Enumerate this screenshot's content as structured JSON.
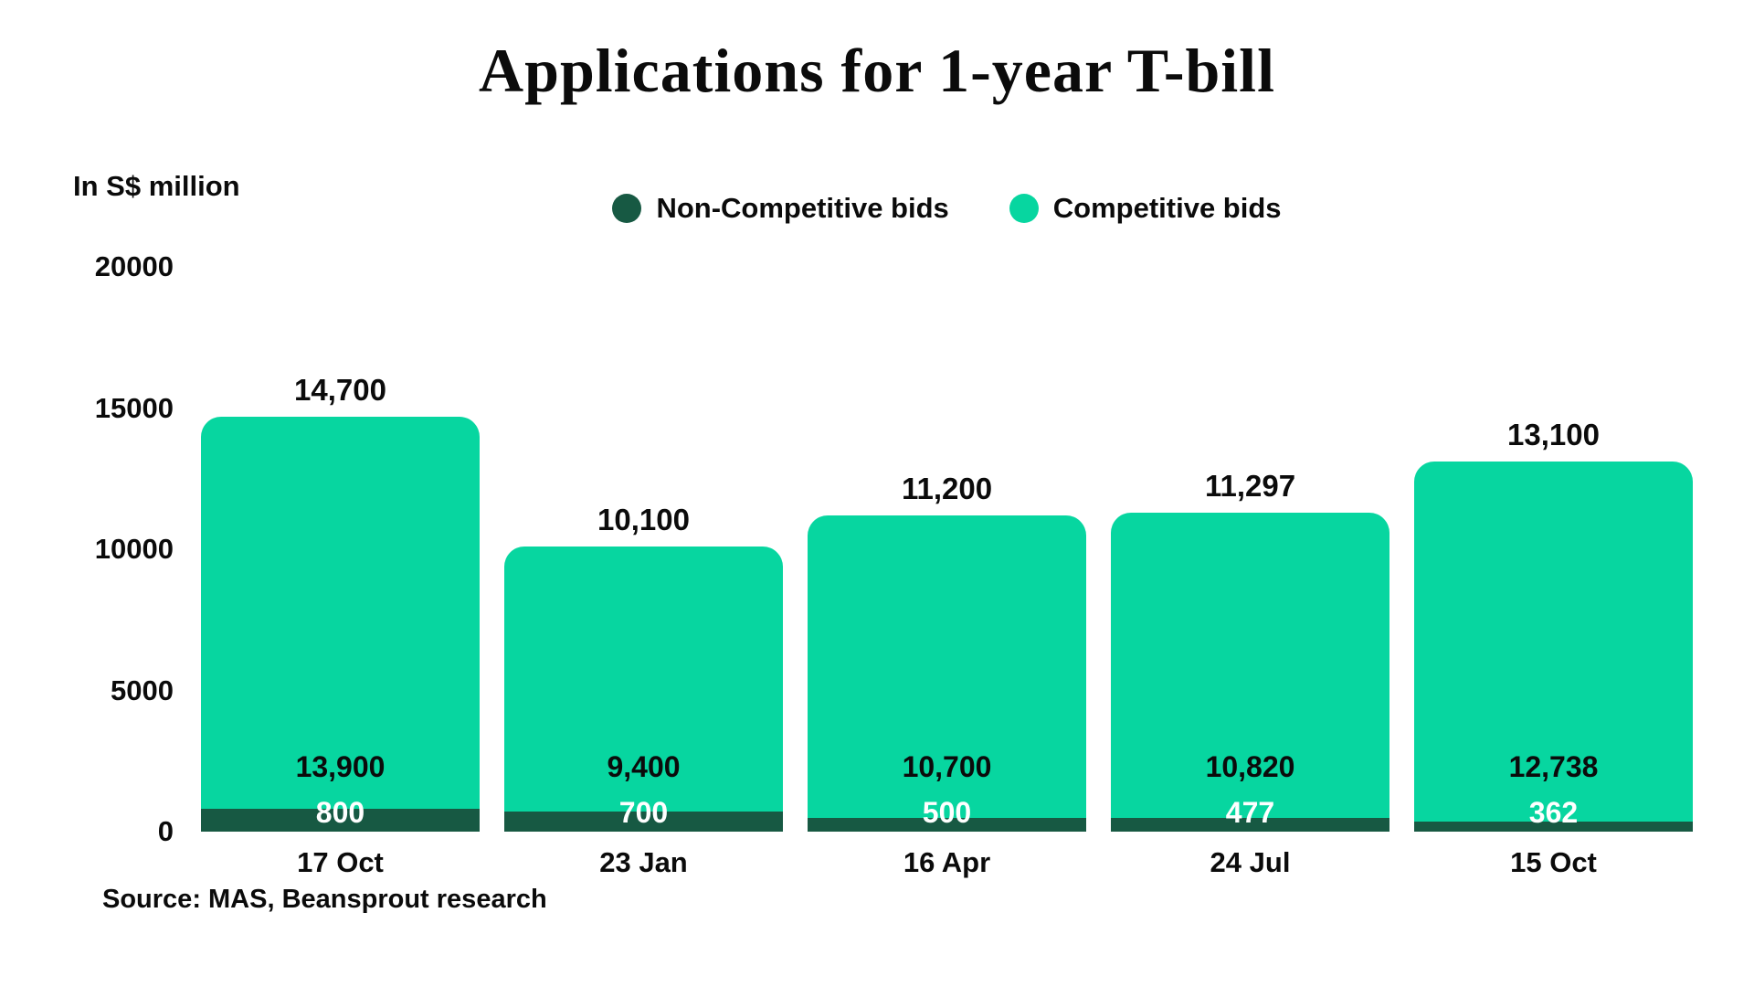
{
  "page": {
    "background": "#ffffff",
    "text_color": "#0b0b0b"
  },
  "chart": {
    "title": "Applications for 1-year T-bill",
    "unit_label": "In S$ million",
    "source": "Source: MAS, Beansprout research",
    "legend_items": [
      {
        "label": "Non-Competitive bids",
        "color": "#175943"
      },
      {
        "label": "Competitive bids",
        "color": "#07d6a0"
      }
    ]
  },
  "chart_data": {
    "type": "bar",
    "stacked": true,
    "title": "Applications for 1-year T-bill",
    "unit": "S$ million",
    "categories": [
      "17 Oct",
      "23 Jan",
      "16 Apr",
      "24 Jul",
      "15 Oct"
    ],
    "series": [
      {
        "name": "Non-Competitive bids",
        "color": "#175943",
        "label_color": "#ffffff",
        "values": [
          800,
          700,
          500,
          477,
          362
        ],
        "value_labels": [
          "800",
          "700",
          "500",
          "477",
          "362"
        ]
      },
      {
        "name": "Competitive bids",
        "color": "#07d6a0",
        "label_color": "#0b0b0b",
        "values": [
          13900,
          9400,
          10700,
          10820,
          12738
        ],
        "value_labels": [
          "13,900",
          "9,400",
          "10,700",
          "10,820",
          "12,738"
        ]
      }
    ],
    "totals": [
      14700,
      10100,
      11200,
      11297,
      13100
    ],
    "total_labels": [
      "14,700",
      "10,100",
      "11,200",
      "11,297",
      "13,100"
    ],
    "ylabel": "In S$ million",
    "yticks": [
      20000,
      15000,
      10000,
      5000,
      0
    ],
    "ylim": [
      0,
      20000
    ],
    "grid": false,
    "legend_position": "top-center",
    "source": "Source: MAS, Beansprout research"
  }
}
